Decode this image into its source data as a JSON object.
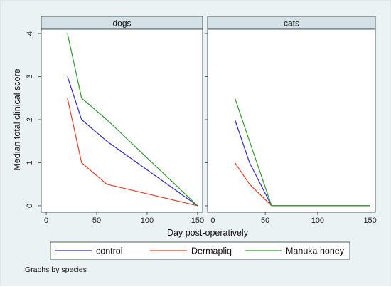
{
  "chart_data": {
    "type": "line",
    "ylabel": "Median total clinical score",
    "xlabel": "Day post-operatively",
    "note": "Graphs by species",
    "xlim": [
      -5,
      155
    ],
    "ylim": [
      -0.15,
      4.1
    ],
    "xticks": [
      0,
      50,
      100,
      150
    ],
    "yticks": [
      0,
      1,
      2,
      3,
      4
    ],
    "grid": false,
    "legend": {
      "position": "bottom",
      "entries": [
        "control",
        "Dermapliq",
        "Manuka honey"
      ]
    },
    "panels": [
      {
        "title": "dogs",
        "series": [
          {
            "name": "control",
            "color": "#2b2bd6",
            "x": [
              21,
              35,
              60,
              150
            ],
            "y": [
              3,
              2,
              1.5,
              0
            ]
          },
          {
            "name": "Dermapliq",
            "color": "#e8402a",
            "x": [
              21,
              35,
              60,
              150
            ],
            "y": [
              2.5,
              1,
              0.5,
              0
            ]
          },
          {
            "name": "Manuka honey",
            "color": "#2e9a2e",
            "x": [
              21,
              35,
              60,
              150
            ],
            "y": [
              4,
              2.5,
              2,
              0
            ]
          }
        ]
      },
      {
        "title": "cats",
        "series": [
          {
            "name": "control",
            "color": "#2b2bd6",
            "x": [
              21,
              35,
              56,
              150
            ],
            "y": [
              2,
              1,
              0,
              0
            ]
          },
          {
            "name": "Dermapliq",
            "color": "#e8402a",
            "x": [
              21,
              35,
              56,
              150
            ],
            "y": [
              1,
              0.5,
              0,
              0
            ]
          },
          {
            "name": "Manuka honey",
            "color": "#2e9a2e",
            "x": [
              21,
              35,
              56,
              150
            ],
            "y": [
              2.5,
              1.5,
              0,
              0
            ]
          }
        ]
      }
    ]
  }
}
